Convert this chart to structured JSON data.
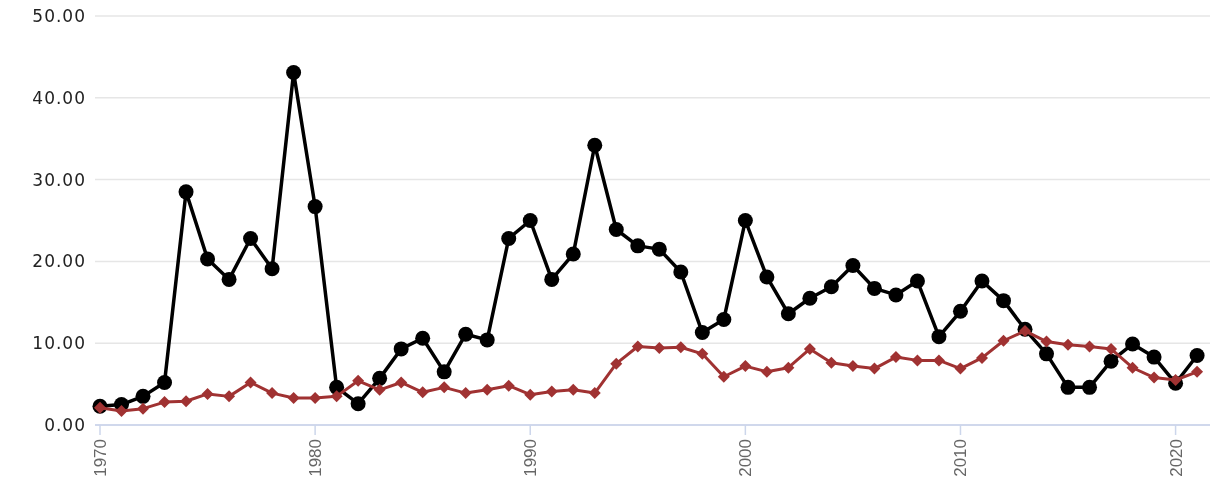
{
  "chart_data": {
    "type": "line",
    "x": [
      1970,
      1971,
      1972,
      1973,
      1974,
      1975,
      1976,
      1977,
      1978,
      1979,
      1980,
      1981,
      1982,
      1983,
      1984,
      1985,
      1986,
      1987,
      1988,
      1989,
      1990,
      1991,
      1992,
      1993,
      1994,
      1995,
      1996,
      1997,
      1998,
      1999,
      2000,
      2001,
      2002,
      2003,
      2004,
      2005,
      2006,
      2007,
      2008,
      2009,
      2010,
      2011,
      2012,
      2013,
      2014,
      2015,
      2016,
      2017,
      2018,
      2019,
      2020,
      2021
    ],
    "xlim": [
      1970,
      2021.6
    ],
    "xticks": [
      1970,
      1980,
      1990,
      2000,
      2010,
      2020
    ],
    "ylim": [
      0,
      50
    ],
    "yticks": [
      {
        "value": 0,
        "label": "0.00"
      },
      {
        "value": 10,
        "label": "10.00"
      },
      {
        "value": 20,
        "label": "20.00"
      },
      {
        "value": 30,
        "label": "30.00"
      },
      {
        "value": 40,
        "label": "40.00"
      },
      {
        "value": 50,
        "label": "50.00"
      }
    ],
    "grid": "y",
    "series": [
      {
        "color": "#000000",
        "marker": "circle",
        "values": [
          2.3,
          2.5,
          3.5,
          5.2,
          28.5,
          20.3,
          17.8,
          22.8,
          19.1,
          43.1,
          26.7,
          4.6,
          2.6,
          5.7,
          9.3,
          10.6,
          6.5,
          11.1,
          10.4,
          22.8,
          25.0,
          17.8,
          20.9,
          34.2,
          23.9,
          21.9,
          21.5,
          18.7,
          11.3,
          12.9,
          25.0,
          18.1,
          13.6,
          15.5,
          16.9,
          19.5,
          16.7,
          15.9,
          17.6,
          10.8,
          13.9,
          17.6,
          15.2,
          11.7,
          8.7,
          4.6,
          4.6,
          7.8,
          9.9,
          8.3,
          5.1,
          8.5
        ]
      },
      {
        "color": "#a03232",
        "marker": "diamond",
        "values": [
          2.1,
          1.7,
          2.0,
          2.8,
          2.9,
          3.8,
          3.5,
          5.2,
          3.9,
          3.3,
          3.3,
          3.5,
          5.4,
          4.3,
          5.2,
          4.0,
          4.6,
          3.9,
          4.3,
          4.8,
          3.7,
          4.1,
          4.3,
          3.9,
          7.5,
          9.6,
          9.4,
          9.5,
          8.7,
          5.9,
          7.2,
          6.5,
          7.0,
          9.3,
          7.6,
          7.2,
          6.9,
          8.3,
          7.9,
          7.9,
          6.9,
          8.2,
          10.3,
          11.5,
          10.2,
          9.8,
          9.6,
          9.3,
          7.0,
          5.8,
          5.5,
          6.5
        ]
      }
    ]
  }
}
